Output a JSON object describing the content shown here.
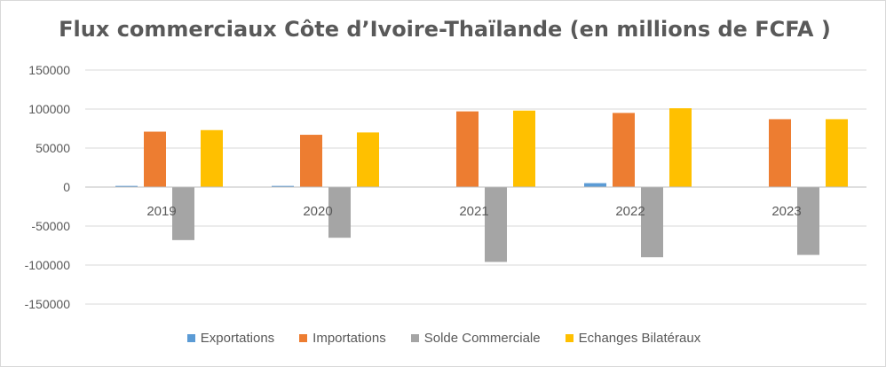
{
  "chart_data": {
    "type": "bar",
    "title": "Flux commerciaux Côte d’Ivoire-Thaïlande (en millions de FCFA )",
    "xlabel": "",
    "ylabel": "",
    "categories": [
      "2019",
      "2020",
      "2021",
      "2022",
      "2023"
    ],
    "ylim": [
      -150000,
      150000
    ],
    "yticks": [
      150000,
      100000,
      50000,
      0,
      -50000,
      -100000,
      -150000
    ],
    "grid": true,
    "legend_position": "bottom",
    "series": [
      {
        "name": "Exportations",
        "color": "#5b9bd5",
        "values": [
          1500,
          1500,
          300,
          5000,
          200
        ]
      },
      {
        "name": "Importations",
        "color": "#ed7d31",
        "values": [
          71000,
          67000,
          97000,
          95000,
          87000
        ]
      },
      {
        "name": "Solde Commerciale",
        "color": "#a5a5a5",
        "values": [
          -68000,
          -65000,
          -96000,
          -90000,
          -87000
        ]
      },
      {
        "name": "Echanges Bilatéraux",
        "color": "#ffc000",
        "values": [
          73000,
          70000,
          98000,
          101000,
          87000
        ]
      }
    ]
  }
}
